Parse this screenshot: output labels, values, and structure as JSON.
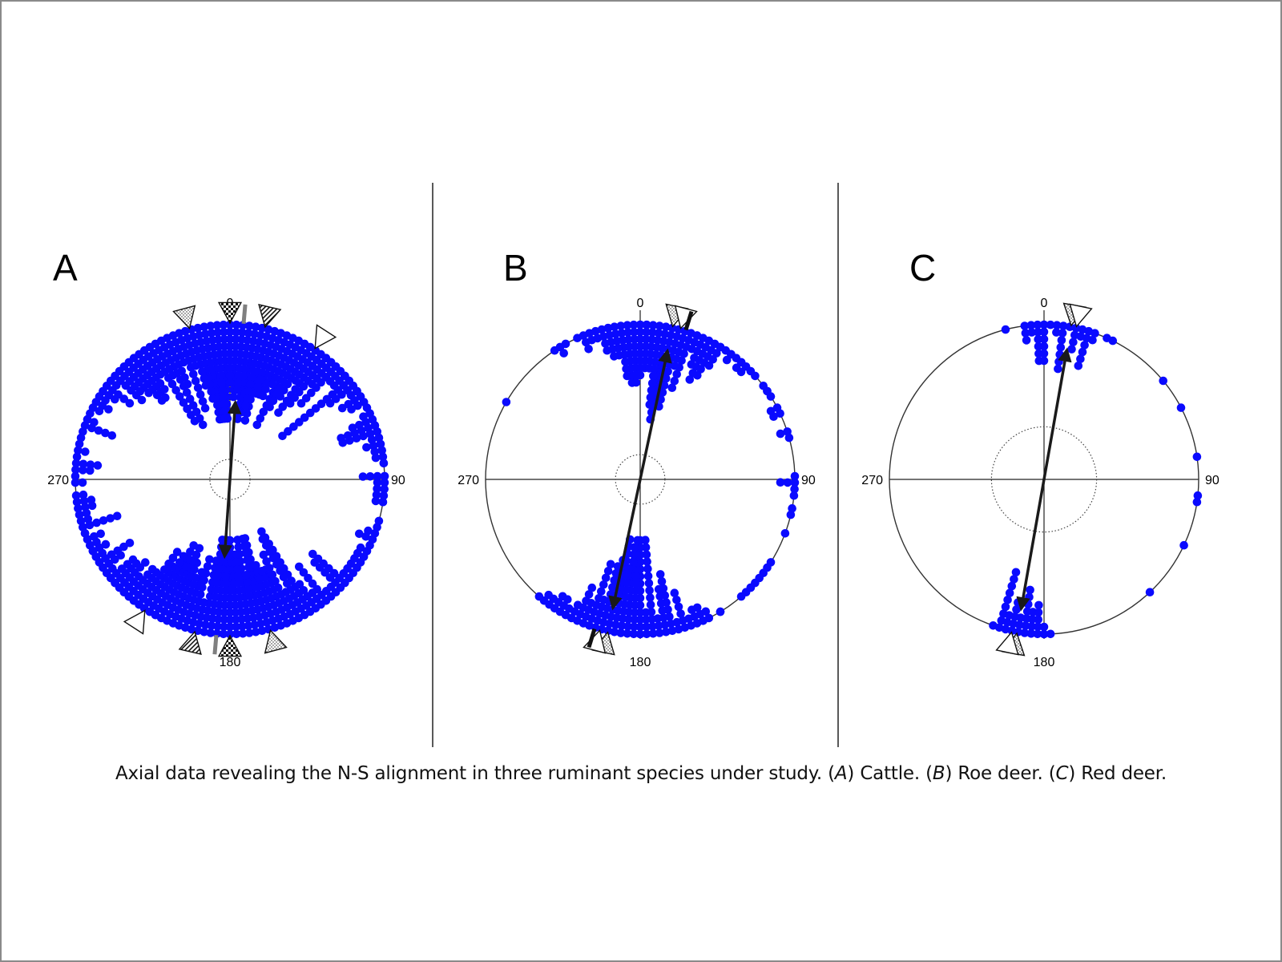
{
  "caption": {
    "main": "Axial data revealing the N-S alignment in three ruminant species under study.",
    "a_letter": "A",
    "a_name": "Cattle.",
    "b_letter": "B",
    "b_name": "Roe deer.",
    "c_letter": "C",
    "c_name": "Red deer."
  },
  "colors": {
    "points": "#0a0aff",
    "circle": "#333333",
    "arrow": "#1a1a1a"
  },
  "chart_data": [
    {
      "type": "scatter",
      "subtype": "circular-axial",
      "panel": "A",
      "species": "Cattle",
      "axis_labels": {
        "top": "0",
        "right": "90",
        "bottom": "180",
        "left": "270"
      },
      "mean_axis_deg": 4,
      "mean_vector_length": 0.5,
      "significance_circle_r": 0.13,
      "density": "very-high",
      "point_groups": [
        {
          "center_deg": 0,
          "spread_deg": 75,
          "count": 460
        },
        {
          "center_deg": 180,
          "spread_deg": 70,
          "count": 440
        },
        {
          "center_deg": 70,
          "spread_deg": 40,
          "count": 60
        },
        {
          "center_deg": 250,
          "spread_deg": 40,
          "count": 60
        }
      ],
      "markers": [
        {
          "deg": -15,
          "style": "dots"
        },
        {
          "deg": 0,
          "style": "checker"
        },
        {
          "deg": 5,
          "style": "gray-bar"
        },
        {
          "deg": 13,
          "style": "stripes"
        },
        {
          "deg": 33,
          "style": "plain"
        },
        {
          "deg": 165,
          "style": "dots"
        },
        {
          "deg": 180,
          "style": "checker"
        },
        {
          "deg": 185,
          "style": "gray-bar"
        },
        {
          "deg": 193,
          "style": "stripes"
        },
        {
          "deg": 213,
          "style": "plain"
        }
      ]
    },
    {
      "type": "scatter",
      "subtype": "circular-axial",
      "panel": "B",
      "species": "Roe deer",
      "axis_labels": {
        "top": "0",
        "right": "90",
        "bottom": "180",
        "left": "270"
      },
      "mean_axis_deg": 12,
      "mean_vector_length": 0.85,
      "significance_circle_r": 0.16,
      "density": "high",
      "point_groups": [
        {
          "center_deg": 5,
          "spread_deg": 35,
          "count": 170
        },
        {
          "center_deg": 185,
          "spread_deg": 38,
          "count": 190
        },
        {
          "center_deg": 90,
          "spread_deg": 90,
          "count": 40
        }
      ],
      "markers": [
        {
          "deg": 12,
          "style": "dots"
        },
        {
          "deg": 15,
          "style": "plain"
        },
        {
          "deg": 17,
          "style": "bar"
        },
        {
          "deg": 192,
          "style": "dots"
        },
        {
          "deg": 195,
          "style": "plain"
        },
        {
          "deg": 197,
          "style": "bar"
        }
      ]
    },
    {
      "type": "scatter",
      "subtype": "circular-axial",
      "panel": "C",
      "species": "Red deer",
      "axis_labels": {
        "top": "0",
        "right": "90",
        "bottom": "180",
        "left": "270"
      },
      "mean_axis_deg": 10,
      "mean_vector_length": 0.85,
      "significance_circle_r": 0.34,
      "density": "low",
      "point_groups": [
        {
          "center_deg": 8,
          "spread_deg": 18,
          "count": 45
        },
        {
          "center_deg": 188,
          "spread_deg": 18,
          "count": 40
        },
        {
          "center_deg": 90,
          "spread_deg": 90,
          "count": 8
        }
      ],
      "markers": [
        {
          "deg": 10,
          "style": "dots"
        },
        {
          "deg": 12,
          "style": "plain"
        },
        {
          "deg": 190,
          "style": "dots"
        },
        {
          "deg": 192,
          "style": "plain"
        }
      ]
    }
  ]
}
